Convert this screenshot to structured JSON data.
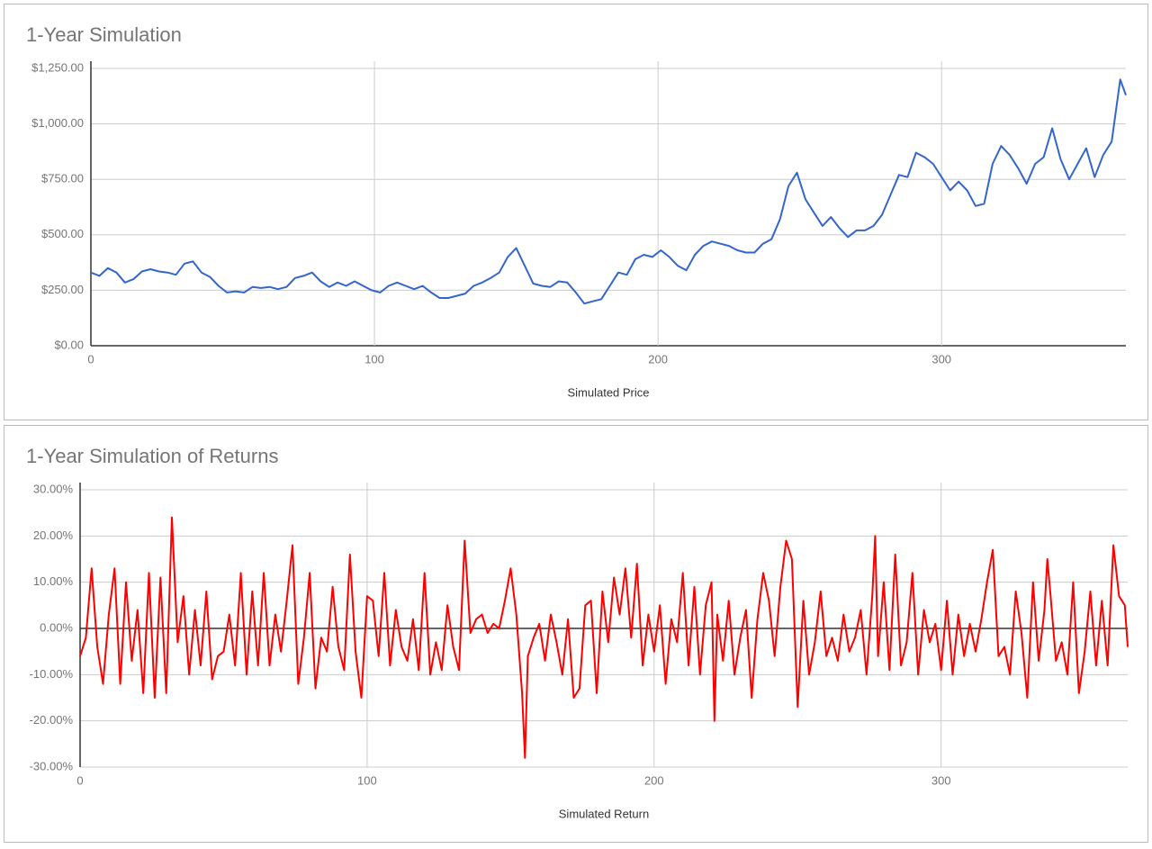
{
  "chart_data": [
    {
      "type": "line",
      "title": "1-Year Simulation",
      "x_label": "Simulated Price",
      "color": "#3366cc",
      "x": [
        0,
        3,
        6,
        9,
        12,
        15,
        18,
        21,
        24,
        27,
        30,
        33,
        36,
        39,
        42,
        45,
        48,
        51,
        54,
        57,
        60,
        63,
        66,
        69,
        72,
        75,
        78,
        81,
        84,
        87,
        90,
        93,
        96,
        99,
        102,
        105,
        108,
        111,
        114,
        117,
        120,
        123,
        126,
        129,
        132,
        135,
        138,
        141,
        144,
        147,
        150,
        153,
        156,
        159,
        162,
        165,
        168,
        171,
        174,
        177,
        180,
        183,
        186,
        189,
        192,
        195,
        198,
        201,
        204,
        207,
        210,
        213,
        216,
        219,
        222,
        225,
        228,
        231,
        234,
        237,
        240,
        243,
        246,
        249,
        252,
        255,
        258,
        261,
        264,
        267,
        270,
        273,
        276,
        279,
        282,
        285,
        288,
        291,
        294,
        297,
        300,
        303,
        306,
        309,
        312,
        315,
        318,
        321,
        324,
        327,
        330,
        333,
        336,
        339,
        342,
        345,
        348,
        351,
        354,
        357,
        360,
        363,
        365
      ],
      "values": [
        330,
        315,
        350,
        330,
        285,
        300,
        335,
        345,
        335,
        330,
        320,
        370,
        380,
        330,
        310,
        270,
        240,
        245,
        240,
        265,
        260,
        265,
        255,
        265,
        305,
        315,
        330,
        290,
        265,
        285,
        270,
        290,
        270,
        250,
        240,
        270,
        285,
        270,
        255,
        270,
        240,
        215,
        215,
        225,
        235,
        270,
        285,
        305,
        330,
        400,
        440,
        360,
        280,
        270,
        265,
        290,
        285,
        240,
        190,
        200,
        210,
        270,
        330,
        320,
        390,
        410,
        400,
        430,
        400,
        360,
        340,
        410,
        450,
        470,
        460,
        450,
        430,
        420,
        420,
        460,
        480,
        570,
        720,
        780,
        660,
        600,
        540,
        580,
        530,
        490,
        520,
        520,
        540,
        590,
        680,
        770,
        760,
        870,
        850,
        820,
        760,
        700,
        740,
        700,
        630,
        640,
        820,
        900,
        860,
        800,
        730,
        820,
        850,
        980,
        840,
        750,
        820,
        890,
        760,
        860,
        920,
        1200,
        1130
      ],
      "xlim": [
        0,
        365
      ],
      "xticks": [
        0,
        100,
        200,
        300
      ],
      "ylim": [
        0,
        1250
      ],
      "yticks": [
        {
          "value": 0,
          "label": "$0.00"
        },
        {
          "value": 250,
          "label": "$250.00"
        },
        {
          "value": 500,
          "label": "$500.00"
        },
        {
          "value": 750,
          "label": "$750.00"
        },
        {
          "value": 1000,
          "label": "$1,000.00"
        },
        {
          "value": 1250,
          "label": "$1,250.00"
        }
      ],
      "grid": true
    },
    {
      "type": "line",
      "title": "1-Year Simulation of Returns",
      "x_label": "Simulated Return",
      "color": "#ff0000",
      "x": [
        0,
        2,
        4,
        6,
        8,
        10,
        12,
        14,
        16,
        18,
        20,
        22,
        24,
        26,
        28,
        30,
        32,
        34,
        36,
        38,
        40,
        42,
        44,
        46,
        48,
        50,
        52,
        54,
        56,
        58,
        60,
        62,
        64,
        66,
        68,
        70,
        72,
        74,
        76,
        78,
        80,
        82,
        84,
        86,
        88,
        90,
        92,
        94,
        96,
        98,
        100,
        102,
        104,
        106,
        108,
        110,
        112,
        114,
        116,
        118,
        120,
        122,
        124,
        126,
        128,
        130,
        132,
        134,
        136,
        138,
        140,
        142,
        144,
        146,
        148,
        150,
        152,
        154,
        155,
        156,
        158,
        160,
        162,
        164,
        166,
        168,
        170,
        172,
        174,
        176,
        178,
        180,
        182,
        184,
        186,
        188,
        190,
        192,
        194,
        196,
        198,
        200,
        202,
        204,
        206,
        208,
        210,
        212,
        214,
        216,
        218,
        220,
        221,
        222,
        224,
        226,
        228,
        230,
        232,
        234,
        236,
        238,
        240,
        242,
        244,
        246,
        248,
        250,
        252,
        254,
        256,
        258,
        260,
        262,
        264,
        266,
        268,
        270,
        272,
        274,
        276,
        277,
        278,
        280,
        282,
        284,
        286,
        288,
        290,
        292,
        294,
        296,
        298,
        300,
        302,
        304,
        306,
        308,
        310,
        312,
        314,
        316,
        318,
        320,
        322,
        324,
        326,
        328,
        330,
        332,
        334,
        336,
        337,
        338,
        340,
        342,
        344,
        346,
        348,
        350,
        352,
        354,
        356,
        358,
        360,
        362,
        364,
        365
      ],
      "values": [
        -6,
        -2,
        13,
        -4,
        -12,
        3,
        13,
        -12,
        10,
        -7,
        4,
        -14,
        12,
        -15,
        11,
        -14,
        24,
        -3,
        7,
        -10,
        4,
        -8,
        8,
        -11,
        -6,
        -5,
        3,
        -8,
        12,
        -10,
        8,
        -8,
        12,
        -8,
        3,
        -5,
        6,
        18,
        -12,
        -2,
        12,
        -13,
        -2,
        -5,
        9,
        -4,
        -9,
        16,
        -5,
        -15,
        7,
        6,
        -6,
        12,
        -8,
        4,
        -4,
        -7,
        2,
        -9,
        12,
        -10,
        -3,
        -9,
        5,
        -4,
        -9,
        19,
        -1,
        2,
        3,
        -1,
        1,
        0,
        6,
        13,
        3,
        -14,
        -28,
        -6,
        -2,
        1,
        -7,
        3,
        -3,
        -10,
        2,
        -15,
        -13,
        5,
        6,
        -14,
        8,
        -3,
        11,
        3,
        13,
        -2,
        14,
        -8,
        3,
        -5,
        5,
        -12,
        2,
        -3,
        12,
        -8,
        9,
        -10,
        5,
        10,
        -20,
        3,
        -7,
        6,
        -10,
        -2,
        4,
        -15,
        2,
        12,
        6,
        -6,
        9,
        19,
        15,
        -17,
        6,
        -10,
        -3,
        8,
        -6,
        -2,
        -7,
        3,
        -5,
        -2,
        4,
        -10,
        7,
        20,
        -6,
        10,
        -9,
        16,
        -8,
        -3,
        12,
        -10,
        4,
        -3,
        1,
        -9,
        6,
        -10,
        3,
        -6,
        1,
        -5,
        2,
        10,
        17,
        -6,
        -4,
        -10,
        8,
        -1,
        -15,
        10,
        -7,
        4,
        15,
        8,
        -7,
        -3,
        -10,
        10,
        -14,
        -5,
        8,
        -8,
        6,
        -8,
        18,
        7,
        5,
        -4
      ],
      "xlim": [
        0,
        365
      ],
      "xticks": [
        0,
        100,
        200,
        300
      ],
      "ylim": [
        -30,
        30
      ],
      "yticks": [
        {
          "value": -30,
          "label": "-30.00%"
        },
        {
          "value": -20,
          "label": "-20.00%"
        },
        {
          "value": -10,
          "label": "-10.00%"
        },
        {
          "value": 0,
          "label": "0.00%"
        },
        {
          "value": 10,
          "label": "10.00%"
        },
        {
          "value": 20,
          "label": "20.00%"
        },
        {
          "value": 30,
          "label": "30.00%"
        }
      ],
      "grid": true
    }
  ]
}
